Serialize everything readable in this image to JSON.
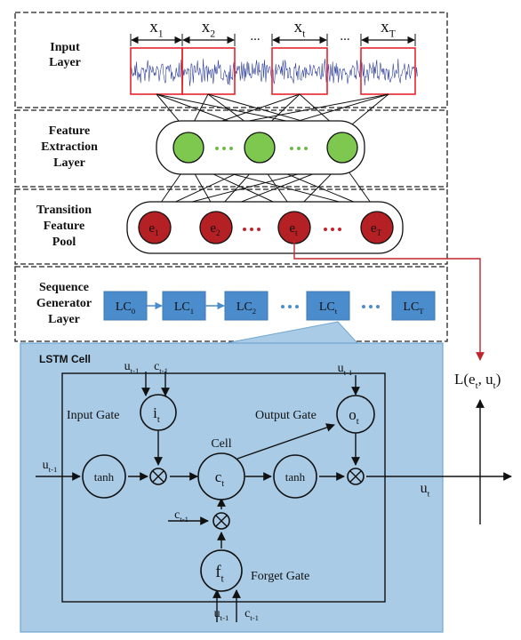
{
  "colors": {
    "signal": "#2e3f9a",
    "window_frame": "#e8242c",
    "feature_node": "#7ec850",
    "feature_dots": "#6dbb44",
    "pool_node": "#b52025",
    "pool_dots": "#c0262d",
    "lc_box": "#4a8ccc",
    "lc_dots": "#4a8ccc",
    "lstm_panel": "#a9cbe6",
    "loss_arrow": "#c0262d"
  },
  "layers": {
    "input": "Input\nLayer",
    "feature": "Feature\nExtraction\nLayer",
    "pool": "Transition\nFeature\nPool",
    "sequence": "Sequence\nGenerator\nLayer"
  },
  "input_windows": [
    {
      "base": "x",
      "sub": "1"
    },
    {
      "base": "x",
      "sub": "2"
    },
    {
      "base": "x",
      "sub": "t"
    },
    {
      "base": "x",
      "sub": "T"
    }
  ],
  "ellipsis": "...",
  "pool_nodes": [
    {
      "base": "e",
      "sub": "1"
    },
    {
      "base": "e",
      "sub": "2"
    },
    {
      "base": "e",
      "sub": "t"
    },
    {
      "base": "e",
      "sub": "T"
    }
  ],
  "lc_boxes": [
    {
      "base": "LC",
      "sub": "0"
    },
    {
      "base": "LC",
      "sub": "1"
    },
    {
      "base": "LC",
      "sub": "2"
    },
    {
      "base": "LC",
      "sub": "t"
    },
    {
      "base": "LC",
      "sub": "T"
    }
  ],
  "loss": {
    "text": "L(e",
    "sub1": "t",
    "mid": ", u",
    "sub2": "t",
    "end": ")"
  },
  "lstm": {
    "title": "LSTM Cell",
    "input_gate": "Input Gate",
    "output_gate": "Output Gate",
    "forget_gate": "Forget Gate",
    "cell": "Cell",
    "tanh": "tanh",
    "i_node": {
      "base": "i",
      "sub": "t"
    },
    "o_node": {
      "base": "o",
      "sub": "t"
    },
    "c_node": {
      "base": "c",
      "sub": "t"
    },
    "f_node": {
      "base": "f",
      "sub": "t"
    },
    "u_prev": {
      "base": "u",
      "sub": "t-1"
    },
    "c_prev": {
      "base": "c",
      "sub": "t-1"
    },
    "u_out": {
      "base": "u",
      "sub": "t"
    }
  }
}
